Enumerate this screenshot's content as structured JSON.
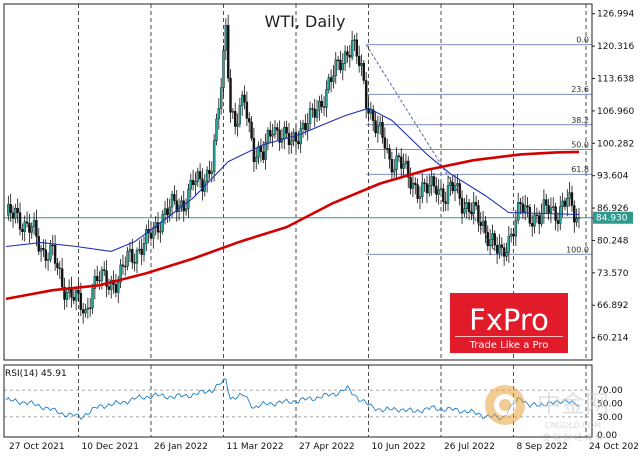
{
  "chart_data": {
    "type": "candlestick",
    "title": "WTI, Daily",
    "instrument": "WTI",
    "timeframe": "Daily",
    "x_ticks": [
      "27 Oct 2021",
      "10 Dec 2021",
      "26 Jan 2022",
      "11 Mar 2022",
      "27 Apr 2022",
      "10 Jun 2022",
      "26 Jul 2022",
      "8 Sep 2022",
      "24 Oct 2022"
    ],
    "y_ticks": [
      "126.994",
      "120.316",
      "113.638",
      "106.960",
      "100.282",
      "93.604",
      "86.926",
      "84.930",
      "80.248",
      "73.570",
      "66.892",
      "60.214"
    ],
    "ylim": [
      55.6,
      129.0
    ],
    "current_price": 84.93,
    "ohlc_sampled": [
      [
        0,
        84.5
      ],
      [
        4,
        86.5
      ],
      [
        8,
        83.0
      ],
      [
        12,
        82.0
      ],
      [
        16,
        78.0
      ],
      [
        20,
        77.5
      ],
      [
        24,
        71.0
      ],
      [
        28,
        69.5
      ],
      [
        32,
        66.5
      ],
      [
        34,
        65.0
      ],
      [
        37,
        71.0
      ],
      [
        40,
        72.5
      ],
      [
        44,
        71.5
      ],
      [
        48,
        72.0
      ],
      [
        52,
        76.5
      ],
      [
        56,
        78.0
      ],
      [
        60,
        80.0
      ],
      [
        64,
        83.0
      ],
      [
        68,
        86.0
      ],
      [
        72,
        87.5
      ],
      [
        76,
        88.0
      ],
      [
        80,
        92.0
      ],
      [
        84,
        92.5
      ],
      [
        88,
        96.0
      ],
      [
        90,
        103.0
      ],
      [
        92,
        112.0
      ],
      [
        93,
        118.0
      ],
      [
        94,
        124.5
      ],
      [
        96,
        108.0
      ],
      [
        98,
        104.0
      ],
      [
        102,
        109.0
      ],
      [
        106,
        99.0
      ],
      [
        110,
        97.5
      ],
      [
        114,
        104.0
      ],
      [
        118,
        102.0
      ],
      [
        122,
        100.0
      ],
      [
        126,
        103.5
      ],
      [
        130,
        105.0
      ],
      [
        134,
        108.0
      ],
      [
        138,
        112.5
      ],
      [
        142,
        116.0
      ],
      [
        146,
        119.5
      ],
      [
        148,
        121.0
      ],
      [
        152,
        115.0
      ],
      [
        154,
        109.5
      ],
      [
        158,
        104.0
      ],
      [
        162,
        100.0
      ],
      [
        164,
        96.5
      ],
      [
        168,
        97.0
      ],
      [
        172,
        93.0
      ],
      [
        176,
        91.0
      ],
      [
        180,
        90.5
      ],
      [
        184,
        92.0
      ],
      [
        188,
        89.0
      ],
      [
        192,
        91.5
      ],
      [
        196,
        87.5
      ],
      [
        200,
        86.0
      ],
      [
        204,
        83.5
      ],
      [
        208,
        80.0
      ],
      [
        210,
        78.0
      ],
      [
        212,
        77.0
      ],
      [
        216,
        82.0
      ],
      [
        220,
        87.0
      ],
      [
        224,
        85.5
      ],
      [
        228,
        85.0
      ],
      [
        232,
        87.0
      ],
      [
        236,
        86.0
      ],
      [
        240,
        88.5
      ],
      [
        243,
        85.8
      ],
      [
        245,
        84.93
      ]
    ],
    "series": [
      {
        "name": "",
        "values": [
          [
            0,
            79.0
          ],
          [
            15,
            79.8
          ],
          [
            30,
            79.0
          ],
          [
            45,
            78.0
          ],
          [
            55,
            80.0
          ],
          [
            65,
            83.5
          ],
          [
            80,
            89.0
          ],
          [
            95,
            96.5
          ],
          [
            110,
            100.0
          ],
          [
            125,
            102.0
          ],
          [
            135,
            104.0
          ],
          [
            145,
            106.0
          ],
          [
            155,
            107.5
          ],
          [
            165,
            105.0
          ],
          [
            180,
            98.0
          ],
          [
            190,
            94.0
          ],
          [
            205,
            89.5
          ],
          [
            215,
            86.0
          ],
          [
            230,
            85.8
          ],
          [
            245,
            85.6
          ]
        ]
      },
      {
        "name": "",
        "values": [
          [
            0,
            68.2
          ],
          [
            20,
            70.0
          ],
          [
            40,
            71.0
          ],
          [
            60,
            73.5
          ],
          [
            80,
            76.5
          ],
          [
            100,
            80.0
          ],
          [
            120,
            83.0
          ],
          [
            140,
            88.0
          ],
          [
            160,
            92.0
          ],
          [
            180,
            94.8
          ],
          [
            200,
            96.8
          ],
          [
            220,
            98.0
          ],
          [
            235,
            98.4
          ],
          [
            245,
            98.5
          ]
        ]
      }
    ],
    "rsi": {
      "label": "RSI(14) 45.91",
      "y_ticks": [
        "70.00",
        "50.00",
        "30.00",
        "0.00"
      ],
      "ylim": [
        0,
        100
      ],
      "values": [
        [
          0,
          55
        ],
        [
          8,
          52
        ],
        [
          16,
          45
        ],
        [
          24,
          35
        ],
        [
          32,
          30
        ],
        [
          40,
          46
        ],
        [
          48,
          50
        ],
        [
          56,
          58
        ],
        [
          64,
          62
        ],
        [
          72,
          60
        ],
        [
          80,
          63
        ],
        [
          88,
          70
        ],
        [
          92,
          80
        ],
        [
          94,
          85
        ],
        [
          96,
          58
        ],
        [
          102,
          62
        ],
        [
          106,
          44
        ],
        [
          112,
          50
        ],
        [
          120,
          52
        ],
        [
          130,
          57
        ],
        [
          140,
          64
        ],
        [
          146,
          72
        ],
        [
          150,
          60
        ],
        [
          156,
          45
        ],
        [
          162,
          40
        ],
        [
          168,
          42
        ],
        [
          174,
          38
        ],
        [
          182,
          43
        ],
        [
          190,
          41
        ],
        [
          198,
          38
        ],
        [
          204,
          32
        ],
        [
          208,
          30
        ],
        [
          212,
          28
        ],
        [
          216,
          45
        ],
        [
          220,
          58
        ],
        [
          224,
          48
        ],
        [
          228,
          46
        ],
        [
          232,
          52
        ],
        [
          236,
          50
        ],
        [
          240,
          56
        ],
        [
          245,
          45.91
        ]
      ]
    },
    "fibonacci": {
      "high": 120.6,
      "low": 77.4,
      "levels": [
        {
          "label": "0.0",
          "value": 120.6
        },
        {
          "label": "23.6",
          "value": 110.4
        },
        {
          "label": "38.2",
          "value": 104.1
        },
        {
          "label": "50.0",
          "value": 99.0
        },
        {
          "label": "61.8",
          "value": 93.9
        },
        {
          "label": "100.0",
          "value": 77.4
        }
      ]
    },
    "colors": {
      "up": "#26a69a",
      "down": "#111111",
      "ma_fast": "#1f2fb5",
      "ma_slow": "#d40000",
      "fib": "#5566aa",
      "current_line": "#2e9a8e"
    },
    "grid": true
  },
  "logo": {
    "brand": "FxPro",
    "tagline": "Trade Like a Pro",
    "bg_color": "#e11b2a"
  },
  "watermark": {
    "text": "中金网",
    "sub": "CNGOLD.COM",
    "sub2": "金 融 财 经 媒 体"
  }
}
